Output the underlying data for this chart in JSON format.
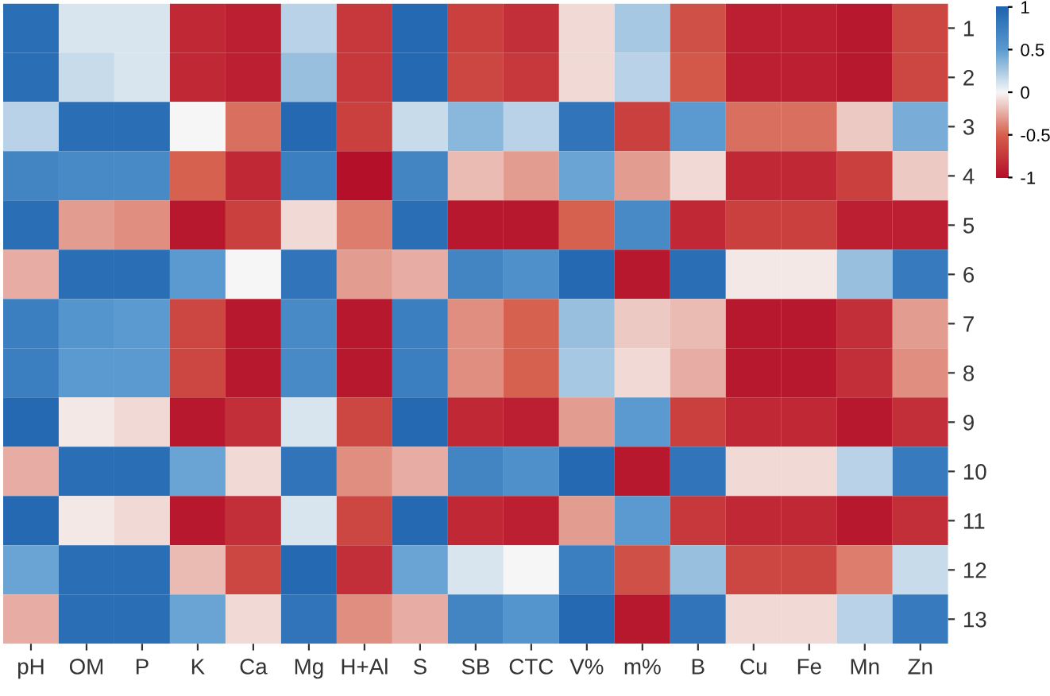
{
  "chart_data": {
    "type": "heatmap",
    "categories": [
      "pH",
      "OM",
      "P",
      "K",
      "Ca",
      "Mg",
      "H+Al",
      "S",
      "SB",
      "CTC",
      "V%",
      "m%",
      "B",
      "Cu",
      "Fe",
      "Mn",
      "Zn"
    ],
    "y_categories": [
      "1",
      "2",
      "3",
      "4",
      "5",
      "6",
      "7",
      "8",
      "9",
      "10",
      "11",
      "12",
      "13"
    ],
    "cells": [
      [
        0.9,
        0.1,
        0.1,
        -0.85,
        -0.9,
        0.2,
        -0.75,
        0.95,
        -0.7,
        -0.8,
        -0.1,
        0.25,
        -0.6,
        -0.9,
        -0.9,
        -0.95,
        -0.65
      ],
      [
        0.9,
        0.15,
        0.1,
        -0.85,
        -0.9,
        0.3,
        -0.75,
        0.95,
        -0.65,
        -0.75,
        -0.1,
        0.2,
        -0.55,
        -0.9,
        -0.9,
        -0.95,
        -0.65
      ],
      [
        0.2,
        0.9,
        0.9,
        0.0,
        -0.45,
        0.95,
        -0.7,
        0.15,
        0.35,
        0.2,
        0.85,
        -0.7,
        0.5,
        -0.45,
        -0.45,
        -0.15,
        0.4
      ],
      [
        0.7,
        0.65,
        0.65,
        -0.5,
        -0.85,
        0.75,
        -1.0,
        0.7,
        -0.2,
        -0.3,
        0.45,
        -0.3,
        -0.1,
        -0.85,
        -0.85,
        -0.7,
        -0.15
      ],
      [
        0.9,
        -0.3,
        -0.35,
        -0.95,
        -0.7,
        -0.1,
        -0.4,
        0.9,
        -0.95,
        -0.95,
        -0.5,
        0.65,
        -0.85,
        -0.7,
        -0.7,
        -0.9,
        -0.9
      ],
      [
        -0.25,
        0.9,
        0.9,
        0.5,
        0.0,
        0.85,
        -0.3,
        -0.25,
        0.7,
        0.6,
        0.95,
        -0.95,
        0.9,
        -0.05,
        -0.05,
        0.3,
        0.8
      ],
      [
        0.75,
        0.55,
        0.5,
        -0.65,
        -0.95,
        0.65,
        -0.95,
        0.75,
        -0.35,
        -0.5,
        0.3,
        -0.15,
        -0.2,
        -0.95,
        -0.95,
        -0.8,
        -0.3
      ],
      [
        0.75,
        0.5,
        0.5,
        -0.65,
        -0.95,
        0.65,
        -0.95,
        0.75,
        -0.35,
        -0.5,
        0.25,
        -0.1,
        -0.25,
        -0.95,
        -0.95,
        -0.8,
        -0.35
      ],
      [
        0.95,
        -0.05,
        -0.1,
        -0.95,
        -0.8,
        0.1,
        -0.65,
        0.95,
        -0.85,
        -0.9,
        -0.3,
        0.5,
        -0.7,
        -0.85,
        -0.85,
        -0.95,
        -0.8
      ],
      [
        -0.25,
        0.9,
        0.9,
        0.45,
        -0.1,
        0.85,
        -0.35,
        -0.25,
        0.7,
        0.6,
        0.95,
        -0.95,
        0.85,
        -0.1,
        -0.1,
        0.2,
        0.8
      ],
      [
        0.95,
        -0.05,
        -0.1,
        -0.95,
        -0.8,
        0.1,
        -0.65,
        0.95,
        -0.85,
        -0.9,
        -0.3,
        0.5,
        -0.75,
        -0.85,
        -0.85,
        -0.95,
        -0.8
      ],
      [
        0.45,
        0.9,
        0.9,
        -0.2,
        -0.65,
        0.95,
        -0.8,
        0.45,
        0.1,
        0.0,
        0.75,
        -0.6,
        0.3,
        -0.65,
        -0.65,
        -0.4,
        0.15
      ],
      [
        -0.25,
        0.9,
        0.9,
        0.45,
        -0.1,
        0.85,
        -0.35,
        -0.25,
        0.7,
        0.55,
        0.95,
        -0.95,
        0.85,
        -0.1,
        -0.1,
        0.2,
        0.8
      ]
    ],
    "clim": [
      -1,
      1
    ],
    "cticks": [
      1,
      0.5,
      0,
      -0.5,
      -1
    ]
  }
}
